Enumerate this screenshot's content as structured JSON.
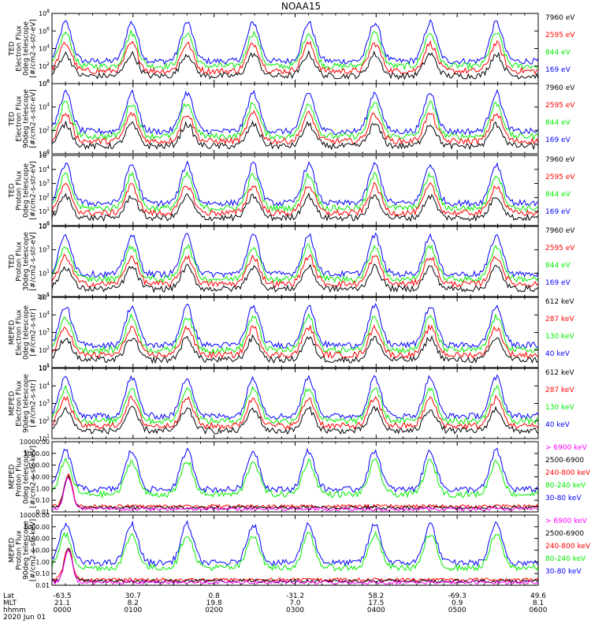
{
  "title": "NOAA15",
  "date_label": "2020 Jun 01",
  "colors": {
    "black": "#000000",
    "red": "#ff0000",
    "green": "#00ee00",
    "blue": "#0000ff",
    "magenta": "#ff00ff"
  },
  "footer": {
    "row_labels": [
      "Lat",
      "MLT",
      "hhmm"
    ],
    "lat": [
      "-63.5",
      "30.7",
      "0.8",
      "-31.2",
      "58.2",
      "-69.3",
      "49.6"
    ],
    "mlt": [
      "21.1",
      "8.2",
      "19.8",
      "7.0",
      "17.5",
      "0.9",
      "8.1"
    ],
    "hhmm": [
      "0000",
      "0100",
      "0200",
      "0300",
      "0400",
      "0500",
      "0600"
    ]
  },
  "chart_data": [
    {
      "type": "line",
      "ylabel": [
        "TED",
        "Electron Flux",
        "0deg telescope",
        "[#/cm2-s-str-eV]"
      ],
      "yscale": "log",
      "ylim": [
        1,
        100000000
      ],
      "yticks": [
        "10^0",
        "10^2",
        "10^4",
        "10^6",
        "10^8"
      ],
      "xlim": [
        0,
        360
      ],
      "legend": [
        {
          "label": "7960 eV",
          "color": "black"
        },
        {
          "label": "2595 eV",
          "color": "red"
        },
        {
          "label": "844 eV",
          "color": "green"
        },
        {
          "label": "169 eV",
          "color": "blue"
        }
      ]
    },
    {
      "type": "line",
      "ylabel": [
        "TED",
        "Electron Flux",
        "90deg telescope",
        "[#/cm2-s-str-eV]"
      ],
      "yscale": "log",
      "ylim": [
        1,
        1000000
      ],
      "yticks": [
        "10^0",
        "10^2",
        "10^4",
        "10^6"
      ],
      "xlim": [
        0,
        360
      ],
      "legend": [
        {
          "label": "7960 eV",
          "color": "black"
        },
        {
          "label": "2595 eV",
          "color": "red"
        },
        {
          "label": "844 eV",
          "color": "green"
        },
        {
          "label": "169 eV",
          "color": "blue"
        }
      ]
    },
    {
      "type": "line",
      "ylabel": [
        "TED",
        "Proton Flux",
        "0deg telescope",
        "[#/cm2-s-str-eV]"
      ],
      "yscale": "log",
      "ylim": [
        1,
        100000
      ],
      "yticks": [
        "10^0",
        "10^1",
        "10^2",
        "10^3",
        "10^4",
        "10^5"
      ],
      "xlim": [
        0,
        360
      ],
      "legend": [
        {
          "label": "7960 eV",
          "color": "black"
        },
        {
          "label": "2595 eV",
          "color": "red"
        },
        {
          "label": "844 eV",
          "color": "green"
        },
        {
          "label": "169 eV",
          "color": "blue"
        }
      ]
    },
    {
      "type": "line",
      "ylabel": [
        "TED",
        "Proton Flux",
        "30deg telescope",
        "[#/cm2-s-str-eV]"
      ],
      "yscale": "log",
      "ylim": [
        0.1,
        100000
      ],
      "yticks": [
        "10^-1",
        "10^1",
        "10^3",
        "10^5"
      ],
      "xlim": [
        0,
        360
      ],
      "legend": [
        {
          "label": "7960 eV",
          "color": "black"
        },
        {
          "label": "2595 eV",
          "color": "red"
        },
        {
          "label": "844 eV",
          "color": "green"
        },
        {
          "label": "169 eV",
          "color": "blue"
        }
      ]
    },
    {
      "type": "line",
      "ylabel": [
        "MEPED",
        "Electron Flux",
        "0deg telescope",
        "[#/cm2-s-str]"
      ],
      "yscale": "log",
      "ylim": [
        10,
        100000
      ],
      "yticks": [
        "10^1",
        "10^2",
        "10^3",
        "10^4",
        "10^5"
      ],
      "xlim": [
        0,
        360
      ],
      "legend": [
        {
          "label": "612 keV",
          "color": "black"
        },
        {
          "label": "287 keV",
          "color": "red"
        },
        {
          "label": "130 keV",
          "color": "green"
        },
        {
          "label": "40 keV",
          "color": "blue"
        }
      ]
    },
    {
      "type": "line",
      "ylabel": [
        "MEPED",
        "Electron Flux",
        "90deg telescope",
        "[#/cm2-s-str]"
      ],
      "yscale": "log",
      "ylim": [
        10,
        100000
      ],
      "yticks": [
        "10^1",
        "10^2",
        "10^3",
        "10^4",
        "10^5"
      ],
      "xlim": [
        0,
        360
      ],
      "legend": [
        {
          "label": "612 keV",
          "color": "black"
        },
        {
          "label": "287 keV",
          "color": "red"
        },
        {
          "label": "130 keV",
          "color": "green"
        },
        {
          "label": "40 keV",
          "color": "blue"
        }
      ]
    },
    {
      "type": "line",
      "ylabel": [
        "MEPED",
        "Proton Flux",
        "0deg telescope",
        "[#/cm2-s-str-keV]"
      ],
      "yscale": "log",
      "ylim": [
        0.01,
        10000
      ],
      "yticks": [
        "0.01",
        "0.10",
        "1.00",
        "10.00",
        "100.00",
        "1000.00",
        "10000.00"
      ],
      "xlim": [
        0,
        360
      ],
      "legend": [
        {
          "label": "> 6900 keV",
          "color": "magenta"
        },
        {
          "label": "2500-6900",
          "color": "black"
        },
        {
          "label": "240-800 keV",
          "color": "red"
        },
        {
          "label": "80-240 keV",
          "color": "green"
        },
        {
          "label": "30-80 keV",
          "color": "blue"
        }
      ]
    },
    {
      "type": "line",
      "ylabel": [
        "MEPED",
        "Proton Flux",
        "90deg telescope",
        "[#/cm2-s-str-keV]"
      ],
      "yscale": "log",
      "ylim": [
        0.01,
        10000
      ],
      "yticks": [
        "0.01",
        "0.10",
        "1.00",
        "10.00",
        "100.00",
        "1000.00",
        "10000.00"
      ],
      "xlim": [
        0,
        360
      ],
      "legend": [
        {
          "label": "> 6900 keV",
          "color": "magenta"
        },
        {
          "label": "2500-6900",
          "color": "black"
        },
        {
          "label": "240-800 keV",
          "color": "red"
        },
        {
          "label": "80-240 keV",
          "color": "green"
        },
        {
          "label": "30-80 keV",
          "color": "blue"
        }
      ]
    }
  ]
}
